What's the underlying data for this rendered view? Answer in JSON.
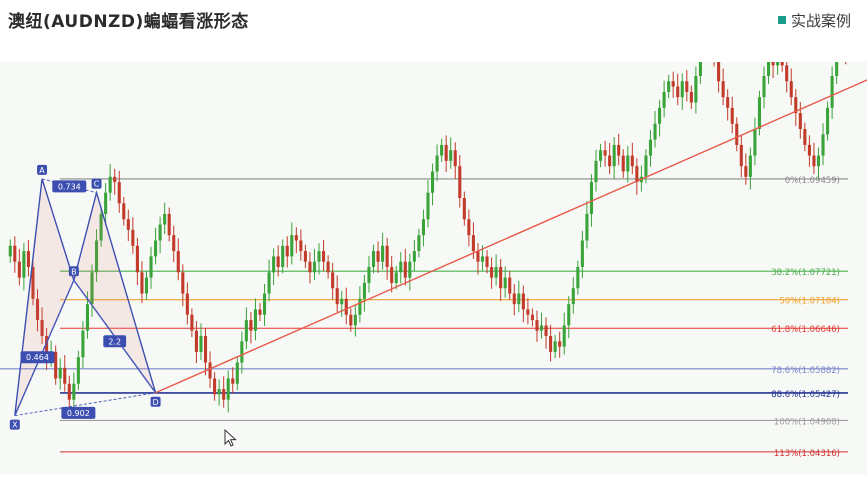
{
  "header": {
    "title": "澳纽(AUDNZD)蝙蝠看涨形态",
    "tag_label": "实战案例",
    "tag_color": "#1a9c8c"
  },
  "chart_data": {
    "type": "candlestick",
    "grid": false,
    "ylim": [
      1.0405,
      1.1155
    ],
    "colors": {
      "up": "#3aa33a",
      "down": "#c23a2a",
      "background": "#f6f9f5"
    },
    "close_series": [
      1.082,
      1.079,
      1.076,
      1.081,
      1.078,
      1.072,
      1.068,
      1.065,
      1.061,
      1.062,
      1.057,
      1.059,
      1.056,
      1.053,
      1.056,
      1.061,
      1.066,
      1.071,
      1.077,
      1.083,
      1.088,
      1.092,
      1.095,
      1.094,
      1.09,
      1.087,
      1.085,
      1.082,
      1.077,
      1.073,
      1.076,
      1.08,
      1.083,
      1.086,
      1.088,
      1.084,
      1.081,
      1.077,
      1.073,
      1.069,
      1.066,
      1.062,
      1.065,
      1.06,
      1.057,
      1.054,
      1.055,
      1.053,
      1.057,
      1.056,
      1.06,
      1.064,
      1.068,
      1.066,
      1.07,
      1.069,
      1.073,
      1.077,
      1.08,
      1.078,
      1.082,
      1.08,
      1.084,
      1.083,
      1.081,
      1.079,
      1.077,
      1.079,
      1.081,
      1.079,
      1.077,
      1.074,
      1.071,
      1.072,
      1.069,
      1.067,
      1.069,
      1.072,
      1.075,
      1.078,
      1.081,
      1.079,
      1.082,
      1.078,
      1.075,
      1.077,
      1.079,
      1.076,
      1.079,
      1.081,
      1.084,
      1.087,
      1.092,
      1.096,
      1.099,
      1.101,
      1.098,
      1.1,
      1.097,
      1.091,
      1.087,
      1.084,
      1.081,
      1.079,
      1.08,
      1.078,
      1.076,
      1.078,
      1.074,
      1.076,
      1.073,
      1.071,
      1.073,
      1.07,
      1.069,
      1.068,
      1.066,
      1.067,
      1.065,
      1.062,
      1.064,
      1.063,
      1.067,
      1.071,
      1.074,
      1.078,
      1.083,
      1.088,
      1.094,
      1.098,
      1.1,
      1.099,
      1.097,
      1.101,
      1.099,
      1.096,
      1.099,
      1.097,
      1.094,
      1.095,
      1.099,
      1.102,
      1.105,
      1.108,
      1.111,
      1.113,
      1.112,
      1.11,
      1.113,
      1.111,
      1.109,
      1.114,
      1.12,
      1.123,
      1.121,
      1.117,
      1.113,
      1.11,
      1.108,
      1.105,
      1.101,
      1.097,
      1.095,
      1.099,
      1.104,
      1.11,
      1.114,
      1.118,
      1.116,
      1.119,
      1.116,
      1.113,
      1.11,
      1.107,
      1.104,
      1.101,
      1.099,
      1.097,
      1.099,
      1.103,
      1.108,
      1.114,
      1.12,
      1.122,
      1.118
    ],
    "fib_levels": [
      {
        "label": "0%(1.09459)",
        "value": 1.09459,
        "color": "#8a8a8a"
      },
      {
        "label": "38.2%(1.07721)",
        "value": 1.07721,
        "color": "#4caf50"
      },
      {
        "label": "50%(1.07184)",
        "value": 1.07184,
        "color": "#f0a030"
      },
      {
        "label": "61.8%(1.06646)",
        "value": 1.06646,
        "color": "#e53935"
      },
      {
        "label": "78.6%(1.05882)",
        "value": 1.05882,
        "color": "#7986cb"
      },
      {
        "label": "88.6%(1.05427)",
        "value": 1.05427,
        "color": "#283593"
      },
      {
        "label": "100%(1.04908)",
        "value": 1.04908,
        "color": "#9e9e9e"
      },
      {
        "label": "113%(1.04316)",
        "value": 1.04316,
        "color": "#d32f2f"
      }
    ],
    "pattern_points": [
      {
        "label": "X",
        "index": 1,
        "price": 1.05
      },
      {
        "label": "A",
        "index": 7,
        "price": 1.0946
      },
      {
        "label": "B",
        "index": 14,
        "price": 1.0755
      },
      {
        "label": "C",
        "index": 19,
        "price": 1.092
      },
      {
        "label": "D",
        "index": 32,
        "price": 1.0543
      }
    ],
    "ratio_labels": [
      {
        "label": "0.734",
        "index": 13,
        "price": 1.0932
      },
      {
        "label": "0.464",
        "index": 6,
        "price": 1.061
      },
      {
        "label": "2.2",
        "index": 23,
        "price": 1.064
      },
      {
        "label": "0.902",
        "index": 15,
        "price": 1.0505
      }
    ],
    "trendline": {
      "from_index": 32,
      "from_price": 1.0543,
      "to_index": 200,
      "to_price": 1.1175,
      "color": "#e85a4a"
    }
  }
}
